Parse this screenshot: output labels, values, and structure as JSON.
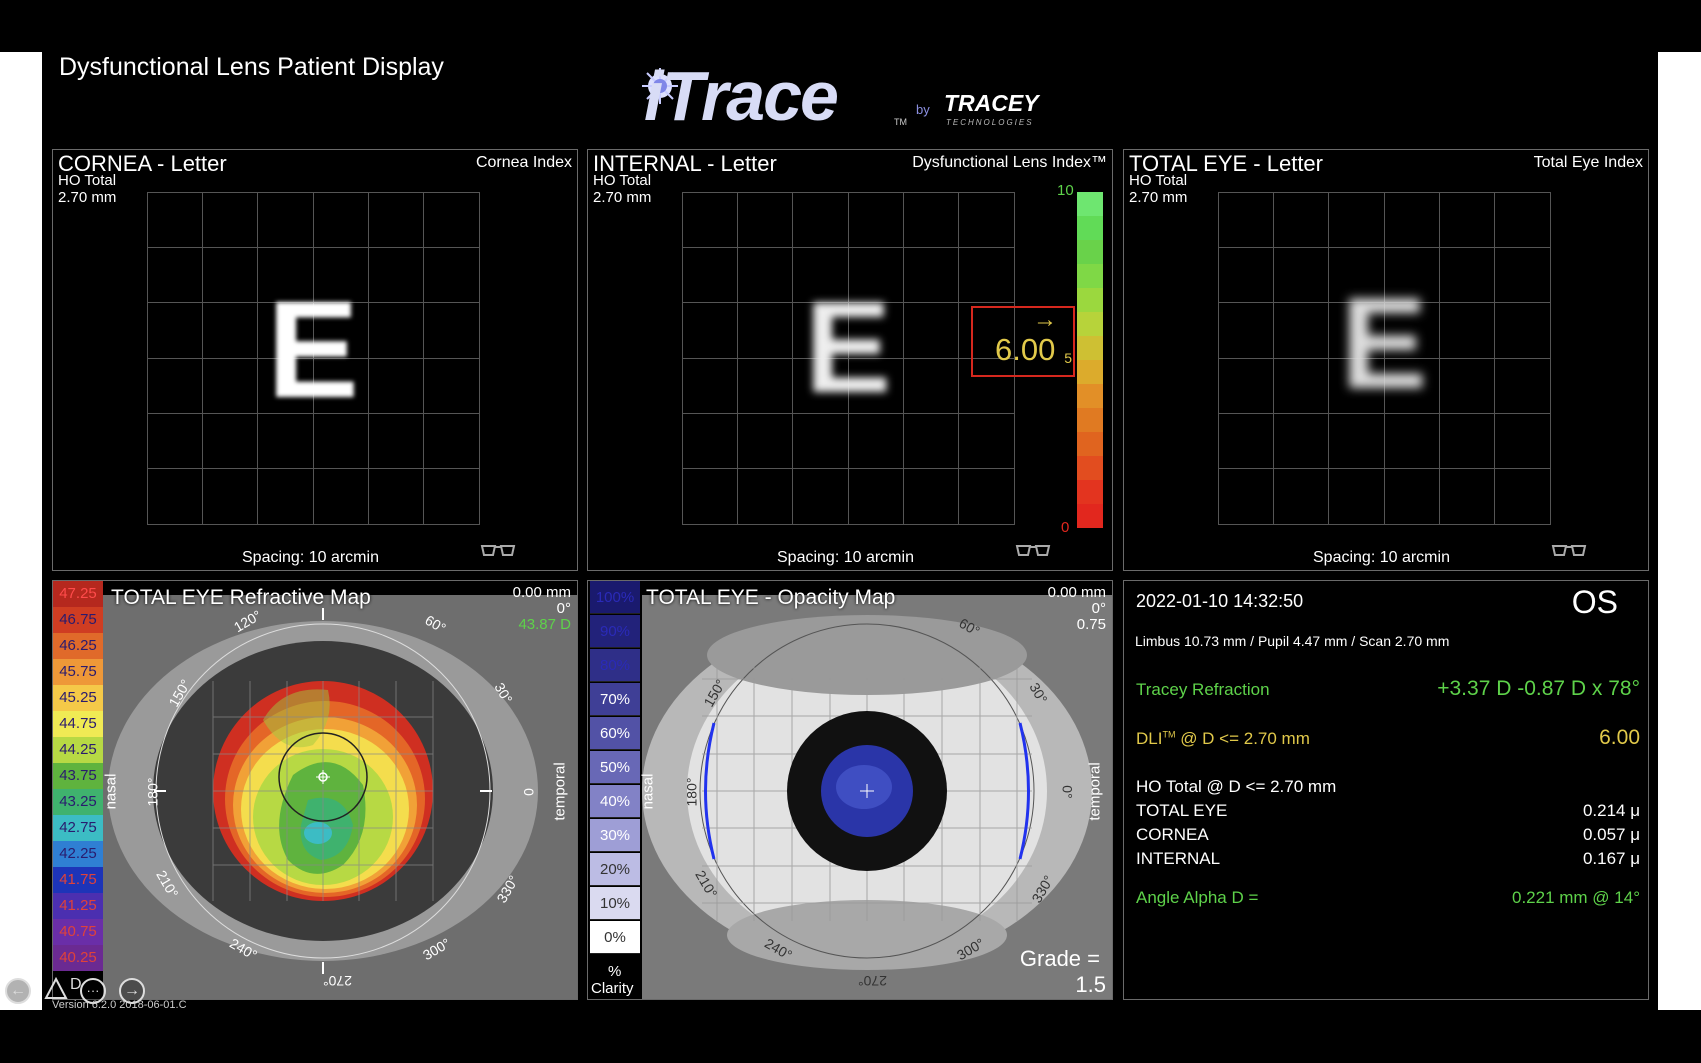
{
  "app": {
    "title": "Dysfunctional Lens Patient Display",
    "logo_main": "iTrace",
    "logo_tm": "TM",
    "logo_by": "by",
    "logo_brand": "TRACEY",
    "logo_brand_sub": "TECHNOLOGIES",
    "version": "Version 6.2.0 2018-06-01.C"
  },
  "panels": {
    "cornea": {
      "title": "CORNEA - Letter",
      "sub1": "HO Total",
      "sub2": "2.70 mm",
      "index_label": "Cornea Index",
      "spacing": "Spacing:  10 arcmin",
      "letter": "E",
      "glasses_icon": "glasses-icon"
    },
    "internal": {
      "title": "INTERNAL - Letter",
      "sub1": "HO Total",
      "sub2": "2.70 mm",
      "index_label": "Dysfunctional Lens Index™",
      "spacing": "Spacing:  10 arcmin",
      "letter": "E",
      "dli_value": "6.00",
      "dli_arrow": "→",
      "scale_top": "10",
      "scale_mid": "5",
      "scale_bottom": "0",
      "dli_fraction": 0.6,
      "scale_colors": [
        "#e2271e",
        "#e3341f",
        "#e24d1f",
        "#e0641f",
        "#e07a22",
        "#e28f27",
        "#dcab2c",
        "#cec033",
        "#b7d33a",
        "#9bd83e",
        "#7fd846",
        "#69d24a",
        "#61db57",
        "#6ee670"
      ]
    },
    "total": {
      "title": "TOTAL EYE - Letter",
      "sub1": "HO Total",
      "sub2": "2.70 mm",
      "index_label": "Total Eye Index",
      "spacing": "Spacing:  10 arcmin",
      "letter": "E"
    }
  },
  "refractive_map": {
    "title": "TOTAL EYE  Refractive Map",
    "top_right_1": "0.00 mm",
    "top_right_2": "0°",
    "top_right_3": "43.87 D",
    "nasal": "nasal",
    "temporal": "temporal",
    "scale": [
      {
        "label": "47.25",
        "color": "#b5281e"
      },
      {
        "label": "46.75",
        "color": "#cf3d22"
      },
      {
        "label": "46.25",
        "color": "#e06a2a"
      },
      {
        "label": "45.75",
        "color": "#ee9838"
      },
      {
        "label": "45.25",
        "color": "#f5c948"
      },
      {
        "label": "44.75",
        "color": "#f0ea54"
      },
      {
        "label": "44.25",
        "color": "#b7d944"
      },
      {
        "label": "43.75",
        "color": "#5fb33e"
      },
      {
        "label": "43.25",
        "color": "#3fb26e"
      },
      {
        "label": "42.75",
        "color": "#3cbcc4"
      },
      {
        "label": "42.25",
        "color": "#2f7fd3"
      },
      {
        "label": "41.75",
        "color": "#1d34b8"
      },
      {
        "label": "41.25",
        "color": "#4b2fb0"
      },
      {
        "label": "40.75",
        "color": "#6a2ea8"
      },
      {
        "label": "40.25",
        "color": "#6b2a92"
      }
    ],
    "angles": [
      "120°",
      "60°",
      "150°",
      "30°",
      "180°",
      "0",
      "210°",
      "330°",
      "240°",
      "300°",
      "270°"
    ]
  },
  "opacity_map": {
    "title": "TOTAL EYE - Opacity Map",
    "top_right_1": "0.00 mm",
    "top_right_2": "0°",
    "top_right_3": "0.75",
    "nasal": "nasal",
    "temporal": "temporal",
    "grade_label": "Grade =",
    "grade_value": "1.5",
    "scale": [
      {
        "label": "100%",
        "color": "#1a1a6e"
      },
      {
        "label": "90%",
        "color": "#22227a"
      },
      {
        "label": "80%",
        "color": "#2f2f88"
      },
      {
        "label": "70%",
        "color": "#3f3f96"
      },
      {
        "label": "60%",
        "color": "#5252a6"
      },
      {
        "label": "50%",
        "color": "#6868b6"
      },
      {
        "label": "40%",
        "color": "#8282c6"
      },
      {
        "label": "30%",
        "color": "#9e9ed6"
      },
      {
        "label": "20%",
        "color": "#bcbce4"
      },
      {
        "label": "10%",
        "color": "#dadaf0"
      },
      {
        "label": "0%",
        "color": "#ffffff"
      }
    ],
    "scale_unit_1": "%",
    "scale_unit_2": "Clarity",
    "angles": [
      "60°",
      "150°",
      "30°",
      "180°",
      "0°",
      "210°",
      "330°",
      "240°",
      "300°",
      "270°"
    ]
  },
  "summary": {
    "datetime": "2022-01-10  14:32:50",
    "eye": "OS",
    "measurements": "Limbus 10.73 mm  /  Pupil 4.47 mm  /  Scan 2.70 mm",
    "refraction_label": "Tracey Refraction",
    "refraction_value": "+3.37 D -0.87 D x 78°",
    "dli_label": "DLI",
    "dli_tm": "TM",
    "dli_label_rest": " @ D <= 2.70 mm",
    "dli_value": "6.00",
    "ho_label": "HO Total @ D <= 2.70 mm",
    "rows": [
      {
        "label": "TOTAL EYE",
        "value": "0.214 μ"
      },
      {
        "label": "CORNEA",
        "value": "0.057 μ"
      },
      {
        "label": "INTERNAL",
        "value": "0.167 μ"
      }
    ],
    "angle_label": "Angle Alpha  D =",
    "angle_value": "0.221 mm @ 14°"
  },
  "nav": {
    "back_icon": "arrow-left-icon",
    "alert_icon": "triangle-icon",
    "more_icon": "more-icon",
    "forward_icon": "arrow-right-icon",
    "back": "←",
    "more": "···",
    "forward": "→",
    "hidden_text": "D"
  }
}
